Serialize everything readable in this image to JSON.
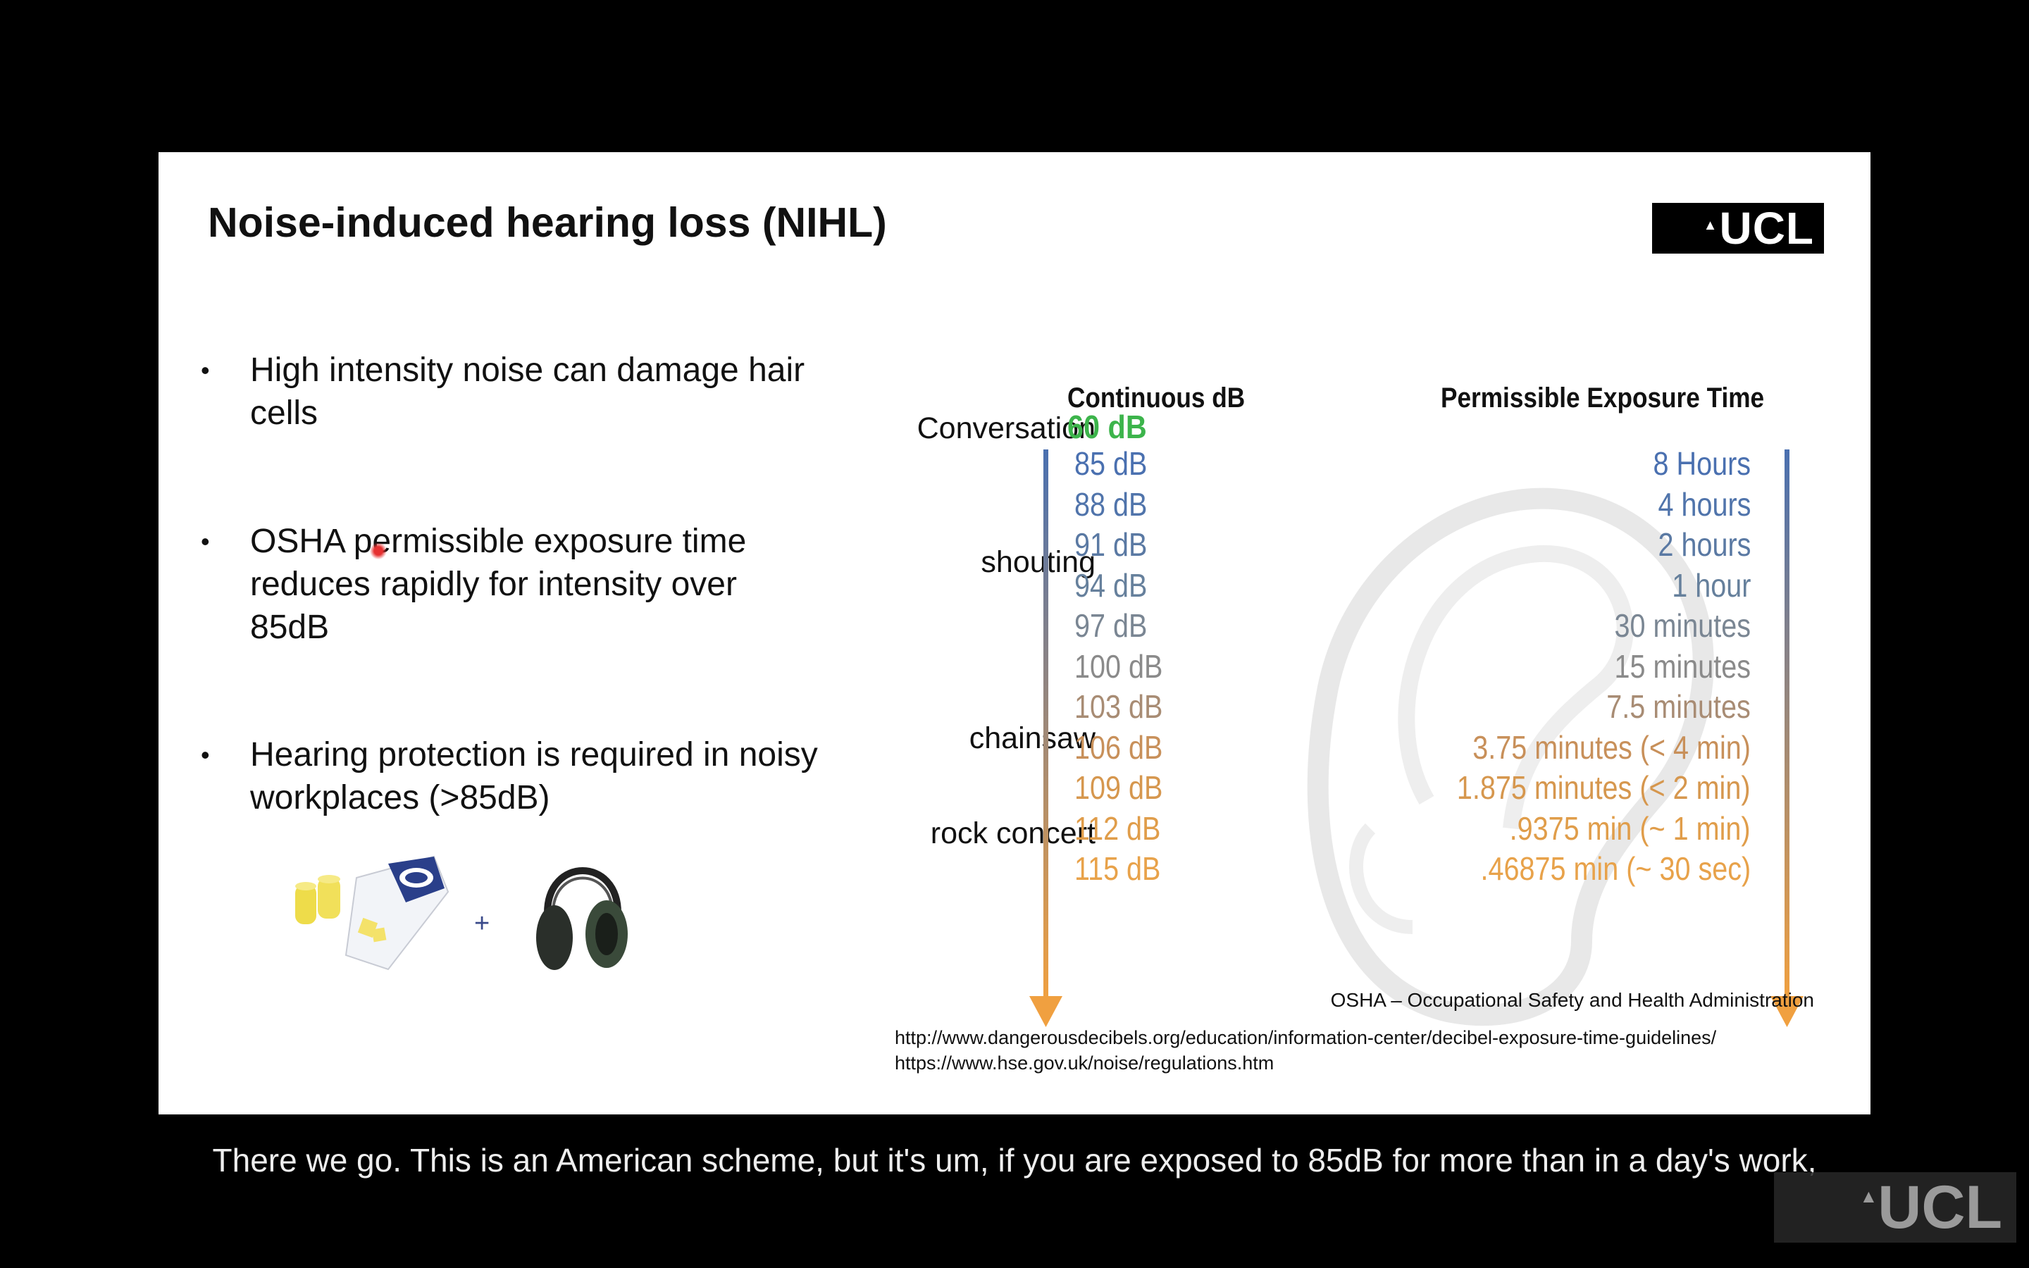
{
  "slide": {
    "title": "Noise-induced hearing loss (NIHL)",
    "logo_text": "UCL",
    "bullets": [
      "High intensity noise can damage hair cells",
      "OSHA permissible exposure time reduces rapidly for intensity over 85dB",
      "Hearing protection is required in noisy workplaces (>85dB)"
    ],
    "bullet_symbol": "•",
    "plus_sign": "+",
    "table": {
      "header_db": "Continuous dB",
      "header_time": "Permissible Exposure Time",
      "sound_labels": {
        "conversation": "Conversation",
        "shouting": "shouting",
        "chainsaw": "chainsaw",
        "rock_concert": "rock concert"
      },
      "conversation_db": "60 dB",
      "rows": [
        {
          "db": "85 dB",
          "time": "8 Hours",
          "color": "#4a70b0"
        },
        {
          "db": "88 dB",
          "time": "4 hours",
          "color": "#5074ab"
        },
        {
          "db": "91 dB",
          "time": "2 hours",
          "color": "#5a79a3"
        },
        {
          "db": "94 dB",
          "time": "1 hour",
          "color": "#66809c"
        },
        {
          "db": "97 dB",
          "time": "30 minutes",
          "color": "#7a8693"
        },
        {
          "db": "100 dB",
          "time": "15 minutes",
          "color": "#8a8a8a"
        },
        {
          "db": "103 dB",
          "time": "7.5 minutes",
          "color": "#a88c74"
        },
        {
          "db": "106 dB",
          "time": "3.75 minutes (< 4 min)",
          "color": "#c8905a"
        },
        {
          "db": "109 dB",
          "time": "1.875 minutes (< 2 min)",
          "color": "#d6974e"
        },
        {
          "db": "112 dB",
          "time": ".9375 min (~ 1 min)",
          "color": "#e09d4a"
        },
        {
          "db": "115 dB",
          "time": ".46875 min (~ 30 sec)",
          "color": "#e8a24a"
        }
      ],
      "conversation_color": "#3cb44b",
      "arrow_top_color": "#4a70b0",
      "arrow_bottom_color": "#f0a040"
    },
    "osha_note": "OSHA – Occupational Safety and Health Administration",
    "urls": [
      "http://www.dangerousdecibels.org/education/information-center/decibel-exposure-time-guidelines/",
      "https://www.hse.gov.uk/noise/regulations.htm"
    ]
  },
  "caption": "There we go. This is an American scheme, but it's um, if you are exposed to 85dB for more than in a day's work,",
  "watermark": "UCL",
  "icons": {
    "logo": "ucl-logo",
    "earplugs": "earplugs-image",
    "earmuffs": "earmuffs-image",
    "ear": "ear-outline-image",
    "laser": "laser-pointer-icon"
  }
}
